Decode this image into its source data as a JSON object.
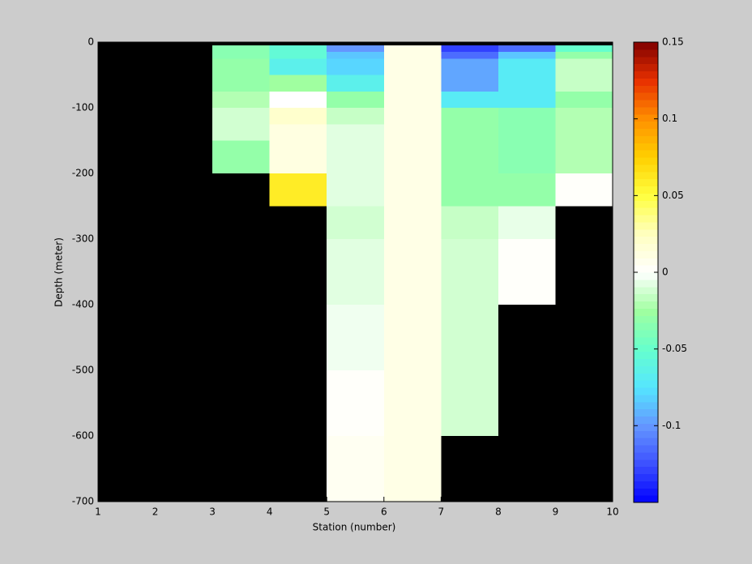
{
  "chart_data": {
    "type": "heatmap",
    "xlabel": "Station (number)",
    "ylabel": "Depth (meter)",
    "x": [
      1,
      2,
      3,
      4,
      5,
      6,
      7,
      8,
      9,
      10
    ],
    "y": [
      0,
      -5,
      -15,
      -25,
      -50,
      -75,
      -100,
      -125,
      -150,
      -200,
      -250,
      -300,
      -400,
      -500,
      -600,
      -700
    ],
    "values": [
      [
        null,
        null,
        null,
        null,
        null,
        null,
        null,
        null,
        null
      ],
      [
        null,
        null,
        -0.035,
        -0.055,
        -0.1,
        0.01,
        -0.13,
        -0.115,
        -0.05
      ],
      [
        null,
        null,
        -0.035,
        -0.055,
        -0.085,
        0.01,
        -0.115,
        -0.085,
        -0.03
      ],
      [
        null,
        null,
        -0.03,
        -0.065,
        -0.08,
        0.01,
        -0.095,
        -0.07,
        -0.015
      ],
      [
        null,
        null,
        -0.03,
        -0.025,
        -0.065,
        0.01,
        -0.095,
        -0.07,
        -0.015
      ],
      [
        null,
        null,
        -0.02,
        0,
        -0.03,
        0.01,
        -0.07,
        -0.07,
        -0.03
      ],
      [
        null,
        null,
        -0.012,
        0.02,
        -0.015,
        0.01,
        -0.03,
        -0.035,
        -0.02
      ],
      [
        null,
        null,
        -0.012,
        0.012,
        -0.008,
        0.01,
        -0.03,
        -0.035,
        -0.02
      ],
      [
        null,
        null,
        -0.03,
        0.012,
        -0.008,
        0.01,
        -0.03,
        -0.035,
        -0.02
      ],
      [
        null,
        null,
        null,
        0.06,
        -0.008,
        0.01,
        -0.03,
        -0.03,
        0.002
      ],
      [
        null,
        null,
        null,
        null,
        -0.012,
        0.01,
        -0.015,
        -0.006,
        null
      ],
      [
        null,
        null,
        null,
        null,
        -0.008,
        0.01,
        -0.012,
        0.002,
        null
      ],
      [
        null,
        null,
        null,
        null,
        -0.004,
        0.01,
        -0.012,
        null,
        null
      ],
      [
        null,
        null,
        null,
        null,
        0.002,
        0.01,
        -0.012,
        null,
        null
      ],
      [
        null,
        null,
        null,
        null,
        0.005,
        0.01,
        null,
        null,
        null
      ]
    ],
    "xlim": [
      1,
      10
    ],
    "ylim": [
      -700,
      0
    ],
    "xticks": [
      1,
      2,
      3,
      4,
      5,
      6,
      7,
      8,
      9,
      10
    ],
    "yticks": [
      0,
      -100,
      -200,
      -300,
      -400,
      -500,
      -600,
      -700
    ],
    "clim": [
      -0.15,
      0.15
    ],
    "cticks": [
      0.15,
      0.1,
      0.05,
      0,
      -0.05,
      -0.1
    ],
    "colormap": [
      "#0000ff",
      "#3c50ff",
      "#6496ff",
      "#55e6ff",
      "#66ffcc",
      "#a0ffa0",
      "#ffffff",
      "#ffffc0",
      "#ffff40",
      "#ffd000",
      "#ff9000",
      "#e83000",
      "#800000"
    ]
  }
}
